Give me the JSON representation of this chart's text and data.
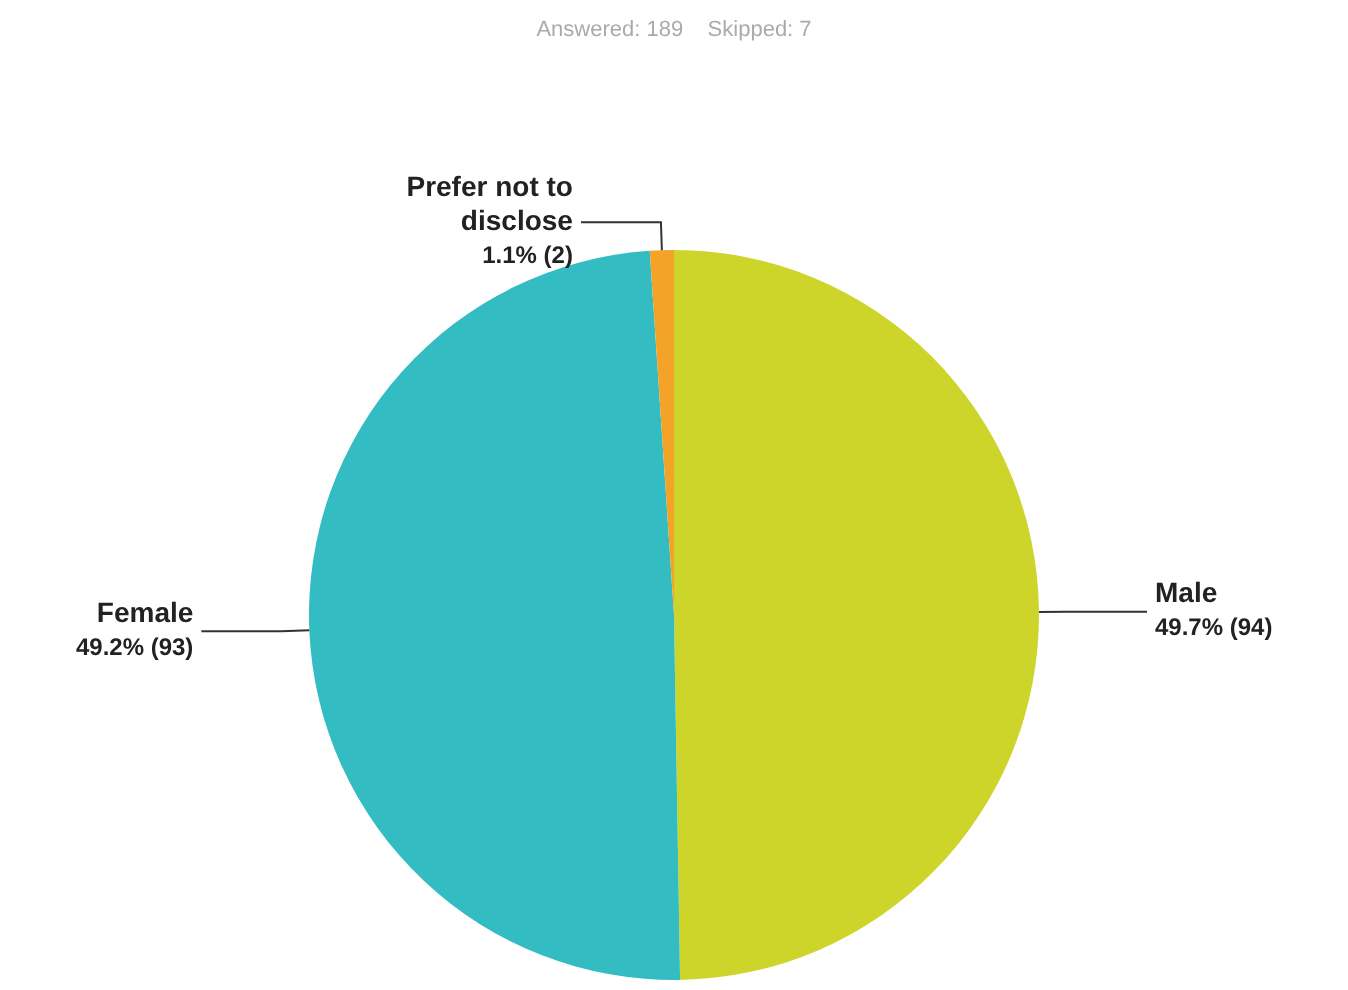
{
  "chart_data": {
    "type": "pie",
    "subtitle": "Answered: 189    Skipped: 7",
    "categories": [
      "Male",
      "Female",
      "Prefer not to disclose"
    ],
    "values": [
      94,
      93,
      2
    ],
    "value_labels": [
      "49.7% (94)",
      "49.2% (93)",
      "1.1% (2)"
    ],
    "colors": [
      "#cdd52b",
      "#33bcc2",
      "#f3a328"
    ],
    "legend": false
  }
}
